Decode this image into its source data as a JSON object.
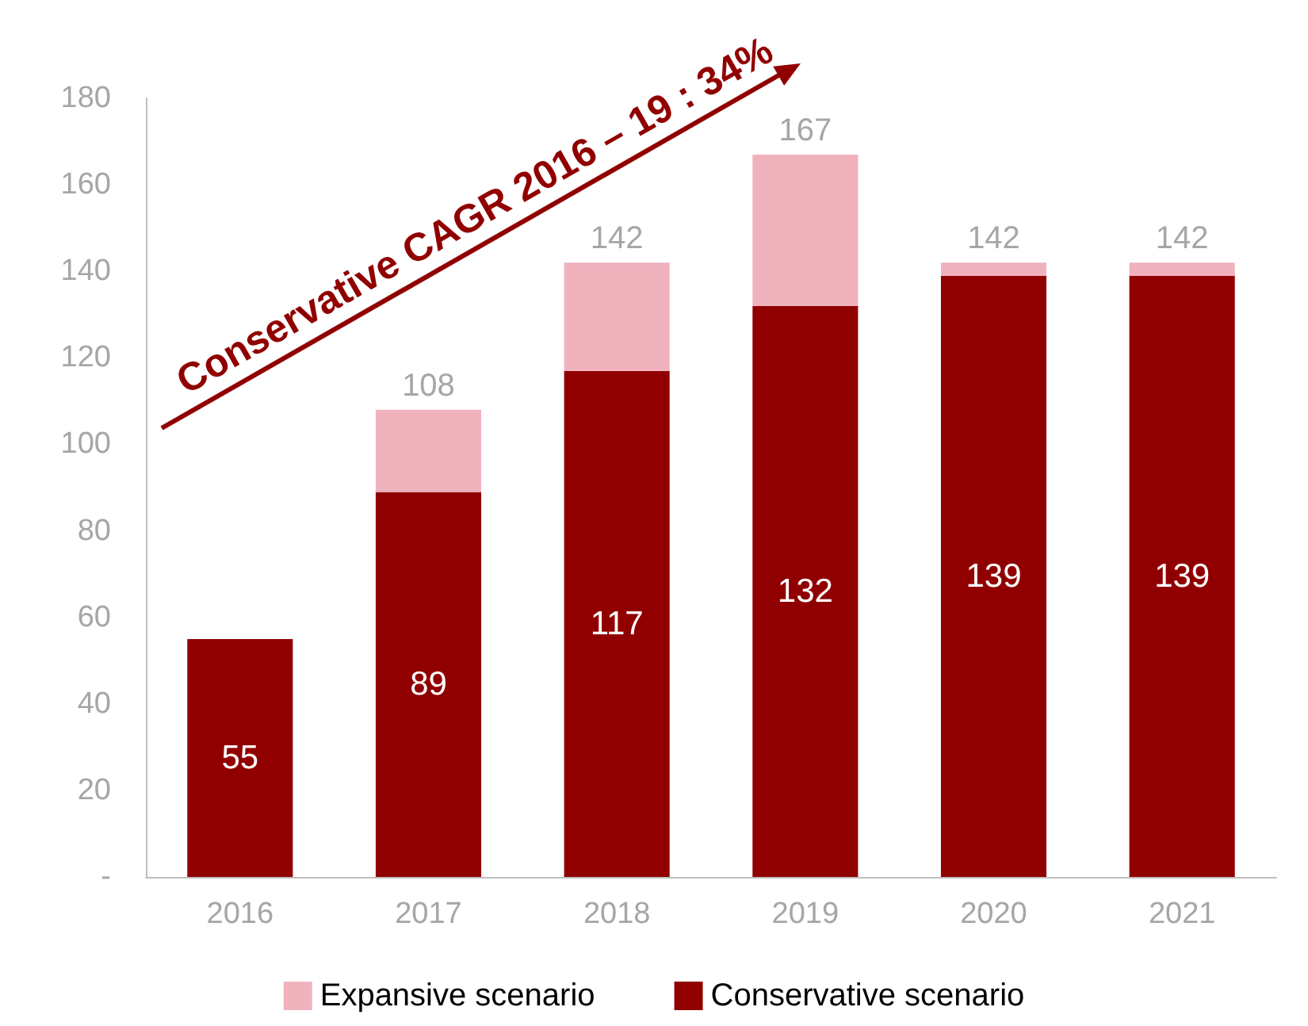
{
  "chart_data": {
    "type": "bar",
    "stacked": true,
    "categories": [
      "2016",
      "2017",
      "2018",
      "2019",
      "2020",
      "2021"
    ],
    "series": [
      {
        "name": "Conservative scenario",
        "color": "#910000",
        "values": [
          55,
          89,
          117,
          132,
          139,
          139
        ],
        "value_labels": [
          "55",
          "89",
          "117",
          "132",
          "139",
          "139"
        ]
      },
      {
        "name": "Expansive scenario",
        "color": "#f0b3be",
        "values": [
          null,
          19,
          25,
          35,
          3,
          3
        ]
      }
    ],
    "totals": [
      null,
      "108",
      "142",
      "167",
      "142",
      "142"
    ],
    "ylim": [
      0,
      180
    ],
    "yticks": [
      {
        "value": 0,
        "label": "-"
      },
      20,
      40,
      60,
      80,
      100,
      120,
      140,
      160,
      180
    ],
    "grid": false,
    "legend": "bottom",
    "annotations": [
      "Conservative CAGR 2016 – 19 : 34%"
    ]
  }
}
